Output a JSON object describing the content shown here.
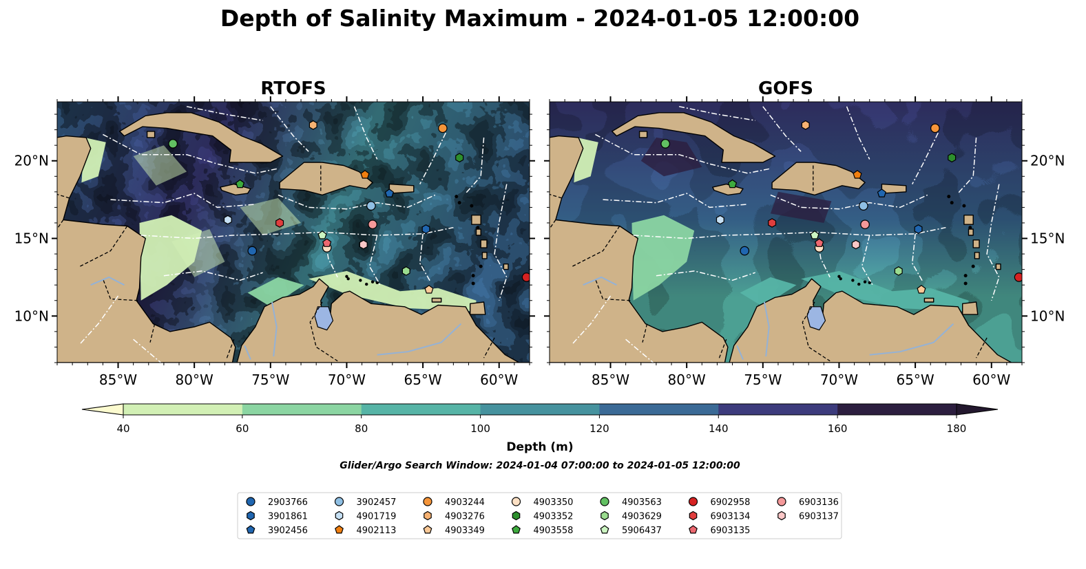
{
  "title": "Depth of Salinity Maximum - 2024-01-05 12:00:00",
  "panels": [
    {
      "title": "RTOFS",
      "variant": "eddy"
    },
    {
      "title": "GOFS",
      "variant": "smooth"
    }
  ],
  "map": {
    "lon_range": [
      -89,
      -58
    ],
    "lat_range": [
      7,
      23.8
    ],
    "lon_ticks": [
      -85,
      -80,
      -75,
      -70,
      -65,
      -60
    ],
    "lon_tick_labels": [
      "85°W",
      "80°W",
      "75°W",
      "70°W",
      "65°W",
      "60°W"
    ],
    "lat_ticks": [
      10,
      15,
      20
    ],
    "lat_tick_labels": [
      "10°N",
      "15°N",
      "20°N"
    ],
    "land_color": "#cfb389",
    "lake_color": "#9cb6e3"
  },
  "colorbar": {
    "label": "Depth (m)",
    "ticks": [
      40,
      60,
      80,
      100,
      120,
      140,
      160,
      180
    ],
    "tick_labels": [
      "40",
      "60",
      "80",
      "100",
      "120",
      "140",
      "160",
      "180"
    ],
    "colors": [
      "#d2f0b5",
      "#8bd5a2",
      "#56b4a6",
      "#46929e",
      "#3b6a96",
      "#3c3b7c",
      "#2c1e3f"
    ],
    "under_color": "#fcfbcf",
    "over_color": "#23182e",
    "extend": "both"
  },
  "search_window": "Glider/Argo Search Window: 2024-01-04 07:00:00 to 2024-01-05 12:00:00",
  "legend": {
    "columns": 7,
    "entries": [
      {
        "id": "2903766",
        "marker": "circle",
        "color": "#2066b0"
      },
      {
        "id": "3901861",
        "marker": "hexagon",
        "color": "#2066b0"
      },
      {
        "id": "3902456",
        "marker": "pentagon",
        "color": "#2066b0"
      },
      {
        "id": "3902457",
        "marker": "circle",
        "color": "#8fbfe3"
      },
      {
        "id": "4901719",
        "marker": "hexagon",
        "color": "#c6e0f4"
      },
      {
        "id": "4902113",
        "marker": "pentagon",
        "color": "#f07f10"
      },
      {
        "id": "4903244",
        "marker": "circle",
        "color": "#f5953a"
      },
      {
        "id": "4903276",
        "marker": "hexagon",
        "color": "#f7b272"
      },
      {
        "id": "4903349",
        "marker": "pentagon",
        "color": "#fbc997"
      },
      {
        "id": "4903350",
        "marker": "circle",
        "color": "#fce0c4"
      },
      {
        "id": "4903352",
        "marker": "hexagon",
        "color": "#2d8f2d"
      },
      {
        "id": "4903558",
        "marker": "pentagon",
        "color": "#3eab3e"
      },
      {
        "id": "4903563",
        "marker": "circle",
        "color": "#62c062"
      },
      {
        "id": "4903629",
        "marker": "hexagon",
        "color": "#9bdc8f"
      },
      {
        "id": "5906437",
        "marker": "pentagon",
        "color": "#ccf5c2"
      },
      {
        "id": "6902958",
        "marker": "circle",
        "color": "#d62222"
      },
      {
        "id": "6903134",
        "marker": "hexagon",
        "color": "#e03e3e"
      },
      {
        "id": "6903135",
        "marker": "pentagon",
        "color": "#ec6870"
      },
      {
        "id": "6903136",
        "marker": "circle",
        "color": "#f4999a"
      },
      {
        "id": "6903137",
        "marker": "hexagon",
        "color": "#fbc7c7"
      }
    ]
  },
  "floats": [
    {
      "id": "2903766",
      "lon": -76.2,
      "lat": 14.2
    },
    {
      "id": "3901861",
      "lon": -64.8,
      "lat": 15.6
    },
    {
      "id": "3902456",
      "lon": -67.2,
      "lat": 17.9
    },
    {
      "id": "3902457",
      "lon": -68.4,
      "lat": 17.1
    },
    {
      "id": "4901719",
      "lon": -77.8,
      "lat": 16.2
    },
    {
      "id": "4902113",
      "lon": -68.8,
      "lat": 19.1
    },
    {
      "id": "4903244",
      "lon": -63.7,
      "lat": 22.1
    },
    {
      "id": "4903276",
      "lon": -72.2,
      "lat": 22.3
    },
    {
      "id": "4903349",
      "lon": -64.6,
      "lat": 11.7
    },
    {
      "id": "4903350",
      "lon": -71.3,
      "lat": 14.4
    },
    {
      "id": "4903352",
      "lon": -62.6,
      "lat": 20.2
    },
    {
      "id": "4903558",
      "lon": -77.0,
      "lat": 18.5
    },
    {
      "id": "4903563",
      "lon": -81.4,
      "lat": 21.1
    },
    {
      "id": "4903629",
      "lon": -66.1,
      "lat": 12.9
    },
    {
      "id": "5906437",
      "lon": -71.6,
      "lat": 15.2
    },
    {
      "id": "6902958",
      "lon": -58.2,
      "lat": 12.5
    },
    {
      "id": "6903134",
      "lon": -74.4,
      "lat": 16.0
    },
    {
      "id": "6903135",
      "lon": -71.3,
      "lat": 14.7
    },
    {
      "id": "6903136",
      "lon": -68.3,
      "lat": 15.9
    },
    {
      "id": "6903137",
      "lon": -68.9,
      "lat": 14.6
    }
  ]
}
